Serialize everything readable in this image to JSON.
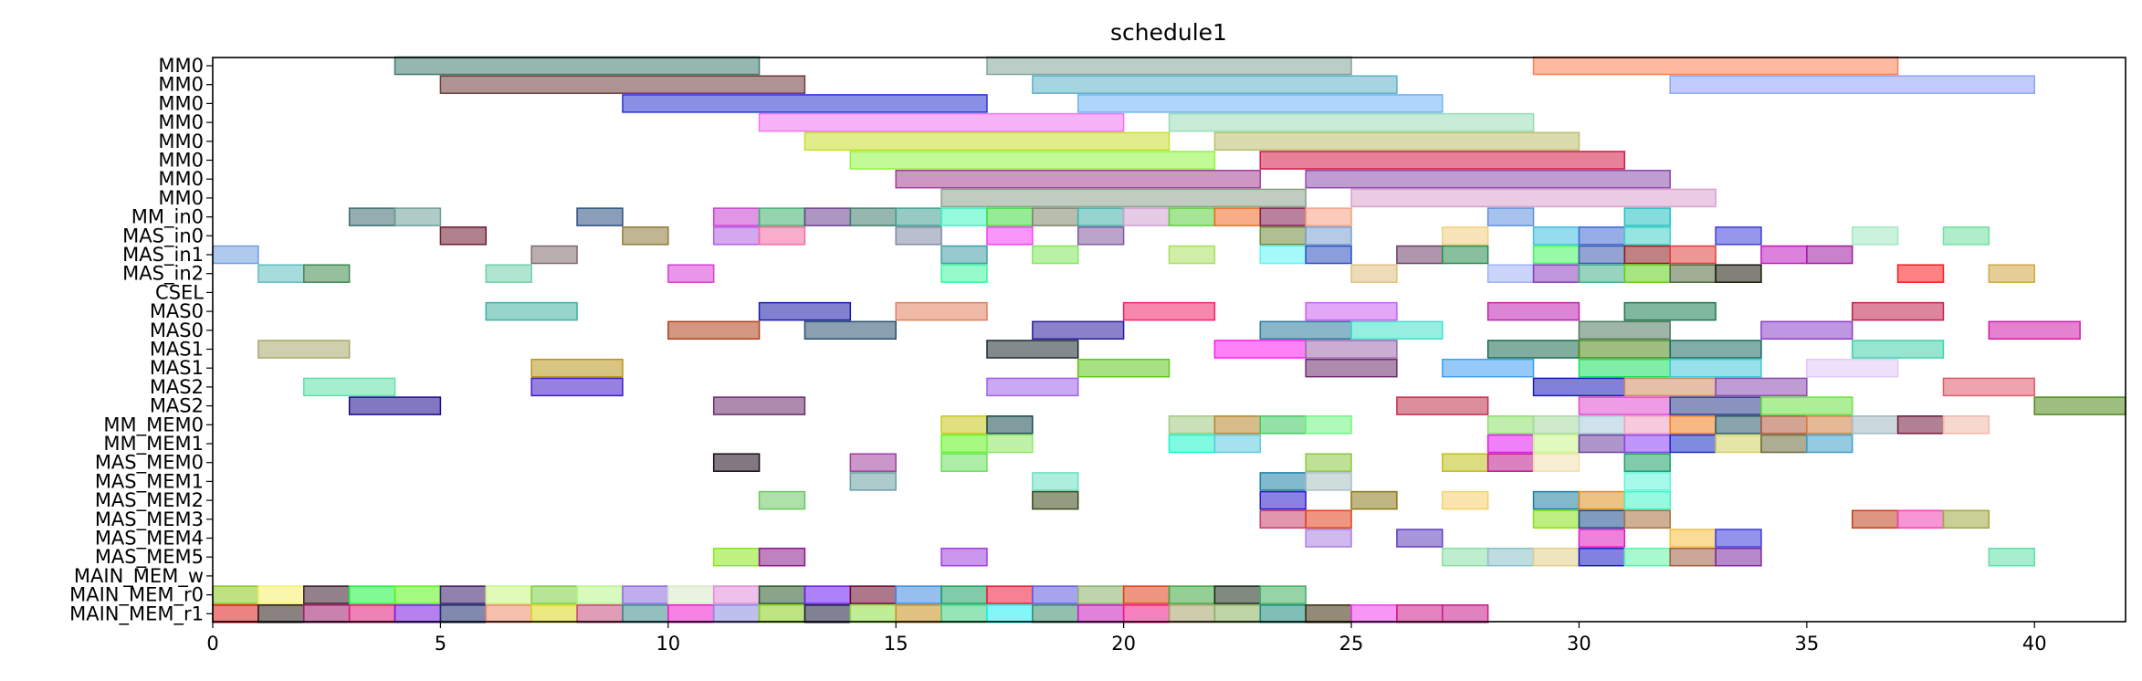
{
  "chart_data": {
    "type": "gantt",
    "title": "schedule1",
    "xlabel": "",
    "ylabel": "",
    "xlim": [
      0,
      42
    ],
    "x_ticks": [
      0,
      5,
      10,
      15,
      20,
      25,
      30,
      35,
      40
    ],
    "grid": false,
    "legend": "none",
    "rows": [
      "MM0",
      "MM0",
      "MM0",
      "MM0",
      "MM0",
      "MM0",
      "MM0",
      "MM0",
      "MM_in0",
      "MAS_in0",
      "MAS_in1",
      "MAS_in2",
      "CSEL",
      "MAS0",
      "MAS0",
      "MAS1",
      "MAS1",
      "MAS2",
      "MAS2",
      "MM_MEM0",
      "MM_MEM1",
      "MAS_MEM0",
      "MAS_MEM1",
      "MAS_MEM2",
      "MAS_MEM3",
      "MAS_MEM4",
      "MAS_MEM5",
      "MAIN_MEM_w",
      "MAIN_MEM_r0",
      "MAIN_MEM_r1"
    ],
    "bars": [
      [
        [
          4,
          12,
          "#3f7b6f"
        ],
        [
          17,
          25,
          "#82a699"
        ],
        [
          29,
          37,
          "#ff7f50"
        ]
      ],
      [
        [
          5,
          13,
          "#6e3a3a"
        ],
        [
          18,
          26,
          "#5fb0c8"
        ],
        [
          32,
          40,
          "#8fa3f5"
        ]
      ],
      [
        [
          9,
          17,
          "#2a34d1"
        ],
        [
          19,
          27,
          "#6fb2f5"
        ]
      ],
      [
        [
          12,
          20,
          "#f275f0"
        ],
        [
          21,
          29,
          "#99dcb7"
        ]
      ],
      [
        [
          13,
          21,
          "#c6de2a"
        ],
        [
          22,
          30,
          "#bcbd6e"
        ]
      ],
      [
        [
          14,
          22,
          "#8ff53e"
        ],
        [
          23,
          31,
          "#d11a45"
        ]
      ],
      [
        [
          15,
          23,
          "#a43f96"
        ],
        [
          24,
          32,
          "#8a4aac"
        ]
      ],
      [
        [
          16,
          24,
          "#8aa28a"
        ],
        [
          25,
          33,
          "#d8a0cc"
        ]
      ],
      [
        [
          3,
          4,
          "#3e6a6f"
        ],
        [
          4,
          5,
          "#6e9e99"
        ],
        [
          8,
          9,
          "#2a4e80"
        ],
        [
          11,
          12,
          "#c93fcf"
        ],
        [
          12,
          13,
          "#3fb06e"
        ],
        [
          13,
          14,
          "#6a3f8f"
        ],
        [
          14,
          15,
          "#3f7b6a"
        ],
        [
          15,
          16,
          "#3f9f8f"
        ],
        [
          16,
          17,
          "#3ff5c0"
        ],
        [
          17,
          18,
          "#3fdd3f"
        ],
        [
          18,
          19,
          "#7e866a"
        ],
        [
          19,
          20,
          "#3fb0a8"
        ],
        [
          20,
          21,
          "#d0a0d0"
        ],
        [
          21,
          22,
          "#5fd03f"
        ],
        [
          22,
          23,
          "#f06a20"
        ],
        [
          23,
          24,
          "#7e1a4a"
        ],
        [
          24,
          25,
          "#f5a080"
        ],
        [
          28,
          29,
          "#6090e0"
        ],
        [
          31,
          32,
          "#20c0c0"
        ]
      ],
      [
        [
          5,
          6,
          "#6e1a30"
        ],
        [
          9,
          10,
          "#8e7a3a"
        ],
        [
          11,
          12,
          "#b05fe0"
        ],
        [
          12,
          13,
          "#f56aa0"
        ],
        [
          15,
          16,
          "#7f8aa8"
        ],
        [
          17,
          18,
          "#f53ff5"
        ],
        [
          19,
          20,
          "#7f5a9f"
        ],
        [
          23,
          24,
          "#6e8a3a"
        ],
        [
          24,
          25,
          "#7a9fcf"
        ],
        [
          27,
          28,
          "#f0d080"
        ],
        [
          29,
          30,
          "#3fc0e0"
        ],
        [
          30,
          31,
          "#3f6ad0"
        ],
        [
          31,
          32,
          "#3fd0c8"
        ],
        [
          33,
          34,
          "#3f3fd8"
        ],
        [
          36,
          37,
          "#9fe8c0"
        ],
        [
          38,
          39,
          "#6fe0a0"
        ]
      ],
      [
        [
          0,
          1,
          "#6f9fe0"
        ],
        [
          7,
          8,
          "#806a70"
        ],
        [
          16,
          17,
          "#3f9fa8"
        ],
        [
          18,
          19,
          "#7fe85f"
        ],
        [
          21,
          22,
          "#a8e05f"
        ],
        [
          23,
          24,
          "#5ff5f5"
        ],
        [
          24,
          25,
          "#2a4ec0"
        ],
        [
          26,
          27,
          "#6e3f6a"
        ],
        [
          27,
          28,
          "#2a8a4e"
        ],
        [
          29,
          30,
          "#3ff55f"
        ],
        [
          30,
          31,
          "#3a5ab0"
        ],
        [
          31,
          32,
          "#8a1a1a"
        ],
        [
          32,
          33,
          "#e03f3f"
        ],
        [
          34,
          35,
          "#c01ac0"
        ],
        [
          35,
          36,
          "#9f1aa0"
        ]
      ],
      [
        [
          1,
          2,
          "#5fc0c0"
        ],
        [
          2,
          3,
          "#3f8a4e"
        ],
        [
          6,
          7,
          "#6fd0a8"
        ],
        [
          10,
          11,
          "#d83fd8"
        ],
        [
          16,
          17,
          "#3ff5a0"
        ],
        [
          25,
          26,
          "#e0c080"
        ],
        [
          28,
          29,
          "#a0b0f5"
        ],
        [
          29,
          30,
          "#8a3fc0"
        ],
        [
          30,
          31,
          "#3fb08a"
        ],
        [
          31,
          32,
          "#5fd01a"
        ],
        [
          32,
          33,
          "#4e6a3a"
        ],
        [
          33,
          34,
          "#1a1a0a"
        ],
        [
          37,
          38,
          "#ff1a1a"
        ],
        [
          39,
          40,
          "#d0a83f"
        ]
      ],
      [],
      [
        [
          6,
          8,
          "#3fb0a0"
        ],
        [
          12,
          14,
          "#1a1aa8"
        ],
        [
          15,
          17,
          "#e07f5f"
        ],
        [
          20,
          22,
          "#f0246a"
        ],
        [
          24,
          26,
          "#c860f0"
        ],
        [
          28,
          30,
          "#c020b0"
        ],
        [
          31,
          33,
          "#1a7a50"
        ],
        [
          36,
          38,
          "#c0204a"
        ]
      ],
      [
        [
          10,
          12,
          "#b0401a"
        ],
        [
          13,
          15,
          "#2a5070"
        ],
        [
          18,
          20,
          "#2a1aa0"
        ],
        [
          23,
          25,
          "#2a7a9f"
        ],
        [
          25,
          27,
          "#3fe0c8"
        ],
        [
          30,
          32,
          "#4e7a5f"
        ],
        [
          34,
          36,
          "#8a3fc8"
        ],
        [
          39,
          41,
          "#d01aa8"
        ]
      ],
      [
        [
          1,
          3,
          "#a8a86a"
        ],
        [
          17,
          19,
          "#1a2a30"
        ],
        [
          22,
          24,
          "#ff1af0"
        ],
        [
          24,
          26,
          "#a06ab0"
        ],
        [
          28,
          30,
          "#1a6a4e"
        ],
        [
          30,
          32,
          "#4e8a1a"
        ],
        [
          32,
          34,
          "#1a6a60"
        ],
        [
          36,
          38,
          "#3fd0a8"
        ]
      ],
      [
        [
          7,
          9,
          "#b8961a"
        ],
        [
          19,
          21,
          "#5fc81a"
        ],
        [
          24,
          26,
          "#6e2a6e"
        ],
        [
          27,
          29,
          "#3f9ff5"
        ],
        [
          30,
          32,
          "#1ae05f"
        ],
        [
          32,
          34,
          "#3fc8d8"
        ],
        [
          35,
          37,
          "#e0c8f5"
        ]
      ],
      [
        [
          2,
          4,
          "#5fe0a8"
        ],
        [
          7,
          9,
          "#3f1ac8"
        ],
        [
          17,
          19,
          "#a060e8"
        ],
        [
          29,
          31,
          "#1a1ac0"
        ],
        [
          31,
          33,
          "#d08a60"
        ],
        [
          33,
          35,
          "#8a4ab0"
        ],
        [
          38,
          40,
          "#e05a6a"
        ]
      ],
      [
        [
          3,
          5,
          "#1a0a8a"
        ],
        [
          11,
          13,
          "#6e2a6e"
        ],
        [
          26,
          28,
          "#c0304a"
        ],
        [
          30,
          32,
          "#e04ad0"
        ],
        [
          32,
          34,
          "#2a3a8a"
        ],
        [
          34,
          36,
          "#6ae03f"
        ],
        [
          40,
          42,
          "#4e8a1a"
        ]
      ],
      [
        [
          16,
          17,
          "#c8c81a"
        ],
        [
          17,
          18,
          "#1a4a4e"
        ],
        [
          21,
          22,
          "#a0c880"
        ],
        [
          22,
          23,
          "#b8862a"
        ],
        [
          23,
          24,
          "#3fc860"
        ],
        [
          24,
          25,
          "#6ff580"
        ],
        [
          28,
          29,
          "#8ae06a"
        ],
        [
          29,
          30,
          "#a8d8a0"
        ],
        [
          30,
          31,
          "#a8c8d8"
        ],
        [
          31,
          32,
          "#f0a0c0"
        ],
        [
          32,
          33,
          "#f07f1a"
        ],
        [
          33,
          34,
          "#2a5a6a"
        ],
        [
          34,
          35,
          "#b05a3a"
        ],
        [
          35,
          36,
          "#d0803f"
        ],
        [
          36,
          37,
          "#a0b8c0"
        ],
        [
          37,
          38,
          "#6e1a3a"
        ],
        [
          38,
          39,
          "#f0b8a8"
        ]
      ],
      [
        [
          16,
          17,
          "#5ff51a"
        ],
        [
          17,
          18,
          "#8ae85f"
        ],
        [
          21,
          22,
          "#1af5c8"
        ],
        [
          22,
          23,
          "#5fc8e0"
        ],
        [
          28,
          29,
          "#e01af0"
        ],
        [
          29,
          30,
          "#c8f58a"
        ],
        [
          30,
          31,
          "#6a3f9f"
        ],
        [
          31,
          32,
          "#8a3ff5"
        ],
        [
          32,
          33,
          "#1a2ac8"
        ],
        [
          33,
          34,
          "#d0d060"
        ],
        [
          34,
          35,
          "#6a6a3a"
        ],
        [
          35,
          36,
          "#3f9fc8"
        ]
      ],
      [
        [
          11,
          12,
          "#1a0a1a"
        ],
        [
          14,
          15,
          "#a03f9f"
        ],
        [
          16,
          17,
          "#6ae05f"
        ],
        [
          24,
          25,
          "#8ac83f"
        ],
        [
          27,
          28,
          "#c0c01a"
        ],
        [
          28,
          29,
          "#c01a8a"
        ],
        [
          29,
          30,
          "#f0e0b0"
        ],
        [
          31,
          32,
          "#1aa06a"
        ]
      ],
      [
        [
          14,
          15,
          "#6aa0a0"
        ],
        [
          18,
          19,
          "#6ae0c0"
        ],
        [
          23,
          24,
          "#1a80a8"
        ],
        [
          24,
          25,
          "#a8c0c0"
        ],
        [
          31,
          32,
          "#5ff5d8"
        ]
      ],
      [
        [
          12,
          13,
          "#6ac85f"
        ],
        [
          18,
          19,
          "#3a4a1a"
        ],
        [
          23,
          24,
          "#2a1ad0"
        ],
        [
          25,
          26,
          "#8a7a1a"
        ],
        [
          27,
          28,
          "#f5d06a"
        ],
        [
          29,
          30,
          "#1a80a0"
        ],
        [
          30,
          31,
          "#e0901a"
        ],
        [
          31,
          32,
          "#3ff5c8"
        ]
      ],
      [
        [
          23,
          24,
          "#c83f6a"
        ],
        [
          24,
          25,
          "#e0401a"
        ],
        [
          29,
          30,
          "#8ae01a"
        ],
        [
          30,
          31,
          "#1a4a8a"
        ],
        [
          31,
          32,
          "#a8703f"
        ],
        [
          36,
          37,
          "#c0401a"
        ],
        [
          37,
          38,
          "#f03fb0"
        ],
        [
          38,
          39,
          "#9fa83f"
        ]
      ],
      [
        [
          24,
          25,
          "#a87fe0"
        ],
        [
          26,
          27,
          "#5f3fc0"
        ],
        [
          30,
          31,
          "#e01ac0"
        ],
        [
          32,
          33,
          "#f5c03f"
        ],
        [
          33,
          34,
          "#3a3ae0"
        ]
      ],
      [
        [
          11,
          12,
          "#8ae81a"
        ],
        [
          12,
          13,
          "#8a1a8a"
        ],
        [
          16,
          17,
          "#a03fe0"
        ],
        [
          27,
          28,
          "#8ae0a8"
        ],
        [
          28,
          29,
          "#8ac0c8"
        ],
        [
          29,
          30,
          "#e0d08a"
        ],
        [
          30,
          31,
          "#1a1ac8"
        ],
        [
          31,
          32,
          "#5ff5a8"
        ],
        [
          32,
          33,
          "#9f5f3f"
        ],
        [
          33,
          34,
          "#7a2a9f"
        ],
        [
          39,
          40,
          "#5fe0a8"
        ]
      ],
      [],
      [
        [
          0,
          1,
          "#8ac81a"
        ],
        [
          1,
          2,
          "#f5f06a"
        ],
        [
          2,
          3,
          "#3a1a2a"
        ],
        [
          3,
          4,
          "#1af53f"
        ],
        [
          4,
          5,
          "#5af51a"
        ],
        [
          5,
          6,
          "#3a1a6a"
        ],
        [
          6,
          7,
          "#c8f57f"
        ],
        [
          7,
          8,
          "#7ad03f"
        ],
        [
          8,
          9,
          "#b8f58a"
        ],
        [
          9,
          10,
          "#8a6ae0"
        ],
        [
          10,
          11,
          "#d8e8c8"
        ],
        [
          11,
          12,
          "#e08ad8"
        ],
        [
          12,
          13,
          "#2a5a2a"
        ],
        [
          13,
          14,
          "#6a1af0"
        ],
        [
          14,
          15,
          "#6a0a2a"
        ],
        [
          15,
          16,
          "#3f8ae0"
        ],
        [
          16,
          17,
          "#1aa060"
        ],
        [
          17,
          18,
          "#f01a3a"
        ],
        [
          18,
          19,
          "#5f5ae0"
        ],
        [
          19,
          20,
          "#8ab06a"
        ],
        [
          20,
          21,
          "#e0401a"
        ],
        [
          21,
          22,
          "#3fa83f"
        ],
        [
          22,
          23,
          "#1a2a1a"
        ],
        [
          23,
          24,
          "#3fb05f"
        ]
      ],
      [
        [
          0,
          1,
          "#e01a1a"
        ],
        [
          1,
          2,
          "#2a1a1a"
        ],
        [
          2,
          3,
          "#a01a6a"
        ],
        [
          3,
          4,
          "#e01a7a"
        ],
        [
          4,
          5,
          "#7a1ae0"
        ],
        [
          5,
          6,
          "#1a2a6a"
        ],
        [
          6,
          7,
          "#f08a6a"
        ],
        [
          7,
          8,
          "#d8d81a"
        ],
        [
          8,
          9,
          "#c84a7a"
        ],
        [
          9,
          10,
          "#3a8a8a"
        ],
        [
          10,
          11,
          "#f01ad0"
        ],
        [
          11,
          12,
          "#8a8ae0"
        ],
        [
          12,
          13,
          "#8ad01a"
        ],
        [
          13,
          14,
          "#1a1a3a"
        ],
        [
          14,
          15,
          "#8ae03f"
        ],
        [
          15,
          16,
          "#c8901a"
        ],
        [
          16,
          17,
          "#3fd07f"
        ],
        [
          17,
          18,
          "#1af0f0"
        ],
        [
          18,
          19,
          "#3a8a6a"
        ],
        [
          19,
          20,
          "#c81ac0"
        ],
        [
          20,
          21,
          "#f01a8a"
        ],
        [
          21,
          22,
          "#a8a06a"
        ],
        [
          22,
          23,
          "#8ab05f"
        ],
        [
          23,
          24,
          "#1a8a7a"
        ],
        [
          24,
          25,
          "#3a2a0a"
        ],
        [
          25,
          26,
          "#f03ff0"
        ],
        [
          26,
          27,
          "#d01a8a"
        ],
        [
          27,
          28,
          "#c81a8a"
        ]
      ]
    ]
  }
}
